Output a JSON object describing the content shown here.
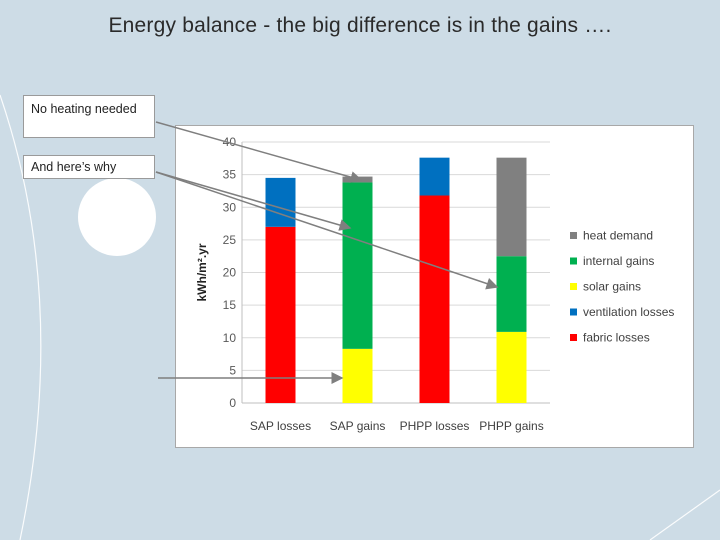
{
  "slide": {
    "title": "Energy balance - the big difference is in the gains …."
  },
  "callouts": {
    "first": "No heating needed",
    "second": "And here’s why"
  },
  "colors": {
    "background": "#cddce6",
    "heat_demand": "#808080",
    "internal_gains": "#00b050",
    "solar_gains": "#ffff00",
    "ventilation_losses": "#0070c0",
    "fabric_losses": "#ff0000"
  },
  "chart_data": {
    "type": "bar",
    "stacked": true,
    "title": "",
    "xlabel": "",
    "ylabel": "kWh/m².yr",
    "ylim": [
      0,
      40
    ],
    "yticks": [
      0,
      5,
      10,
      15,
      20,
      25,
      30,
      35,
      40
    ],
    "grid": true,
    "legend_position": "right",
    "categories": [
      "SAP losses",
      "SAP gains",
      "PHPP losses",
      "PHPP gains"
    ],
    "series": [
      {
        "name": "fabric losses",
        "color": "#ff0000",
        "values": [
          27,
          0,
          31.8,
          0
        ]
      },
      {
        "name": "ventilation losses",
        "color": "#0070c0",
        "values": [
          7.5,
          0,
          5.8,
          0
        ]
      },
      {
        "name": "solar gains",
        "color": "#ffff00",
        "values": [
          0,
          8.3,
          0,
          10.9
        ]
      },
      {
        "name": "internal gains",
        "color": "#00b050",
        "values": [
          0,
          25.5,
          0,
          11.6
        ]
      },
      {
        "name": "heat demand",
        "color": "#808080",
        "values": [
          0,
          0.9,
          0,
          15.1
        ]
      }
    ],
    "legend_order": [
      "heat demand",
      "internal gains",
      "solar gains",
      "ventilation losses",
      "fabric losses"
    ]
  }
}
